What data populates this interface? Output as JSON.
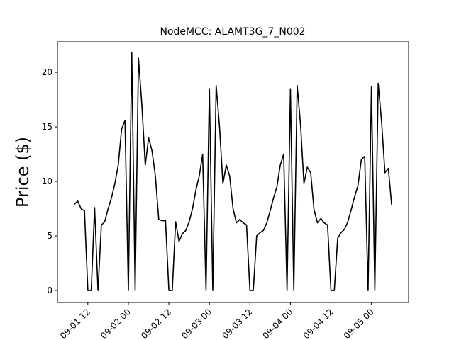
{
  "chart_data": {
    "type": "line",
    "title": "NodeMCC: ALAMT3G_7_N002",
    "y_label": "Price ($)",
    "x": [
      "09-01 08",
      "09-01 09",
      "09-01 10",
      "09-01 11",
      "09-01 12",
      "09-01 13",
      "09-01 14",
      "09-01 15",
      "09-01 16",
      "09-01 17",
      "09-01 18",
      "09-01 19",
      "09-01 20",
      "09-01 21",
      "09-01 22",
      "09-01 23",
      "09-02 00",
      "09-02 01",
      "09-02 02",
      "09-02 03",
      "09-02 04",
      "09-02 05",
      "09-02 06",
      "09-02 07",
      "09-02 08",
      "09-02 09",
      "09-02 10",
      "09-02 11",
      "09-02 12",
      "09-02 13",
      "09-02 14",
      "09-02 15",
      "09-02 16",
      "09-02 17",
      "09-02 18",
      "09-02 19",
      "09-02 20",
      "09-02 21",
      "09-02 22",
      "09-02 23",
      "09-03 00",
      "09-03 01",
      "09-03 02",
      "09-03 03",
      "09-03 04",
      "09-03 05",
      "09-03 06",
      "09-03 07",
      "09-03 08",
      "09-03 09",
      "09-03 10",
      "09-03 11",
      "09-03 12",
      "09-03 13",
      "09-03 14",
      "09-03 15",
      "09-03 16",
      "09-03 17",
      "09-03 18",
      "09-03 19",
      "09-03 20",
      "09-03 21",
      "09-03 22",
      "09-03 23",
      "09-04 00",
      "09-04 01",
      "09-04 02",
      "09-04 03",
      "09-04 04",
      "09-04 05",
      "09-04 06",
      "09-04 07",
      "09-04 08",
      "09-04 09",
      "09-04 10",
      "09-04 11",
      "09-04 12",
      "09-04 13",
      "09-04 14",
      "09-04 15",
      "09-04 16",
      "09-04 17",
      "09-04 18",
      "09-04 19",
      "09-04 20",
      "09-04 21",
      "09-04 22",
      "09-04 23",
      "09-05 00",
      "09-05 01",
      "09-05 02",
      "09-05 03",
      "09-05 04",
      "09-05 05",
      "09-05 06"
    ],
    "series": [
      {
        "name": "ALAMT3G_7_N002",
        "color": "#000000",
        "values": [
          7.9,
          8.2,
          7.5,
          7.3,
          0,
          0,
          7.6,
          0,
          6.0,
          6.3,
          7.5,
          8.5,
          9.8,
          11.5,
          14.8,
          15.6,
          0,
          21.8,
          0,
          21.3,
          17.0,
          11.5,
          14.0,
          12.8,
          10.5,
          6.5,
          6.4,
          6.4,
          0,
          0,
          6.3,
          4.5,
          5.2,
          5.5,
          6.3,
          7.5,
          9.2,
          10.5,
          12.5,
          0,
          18.5,
          0,
          18.8,
          15.0,
          9.8,
          11.5,
          10.5,
          7.5,
          6.2,
          6.5,
          6.2,
          6.0,
          0,
          0,
          5.0,
          5.3,
          5.5,
          6.2,
          7.3,
          8.5,
          9.5,
          11.5,
          12.5,
          0,
          18.5,
          0,
          18.8,
          15.2,
          9.8,
          11.3,
          10.8,
          7.4,
          6.2,
          6.6,
          6.2,
          6.0,
          0,
          0,
          4.8,
          5.3,
          5.6,
          6.3,
          7.4,
          8.6,
          9.6,
          12.0,
          12.3,
          0,
          18.7,
          0,
          19.0,
          15.5,
          10.8,
          11.2,
          7.8
        ]
      }
    ],
    "xlim": [
      "09-01 03",
      "09-05 11"
    ],
    "xticks": [
      "09-01 12",
      "09-02 00",
      "09-02 12",
      "09-03 00",
      "09-03 12",
      "09-04 00",
      "09-04 12",
      "09-05 00"
    ],
    "ylim": [
      -1.1,
      22.8
    ],
    "yticks": [
      0,
      5,
      10,
      15,
      20
    ],
    "grid": false
  }
}
